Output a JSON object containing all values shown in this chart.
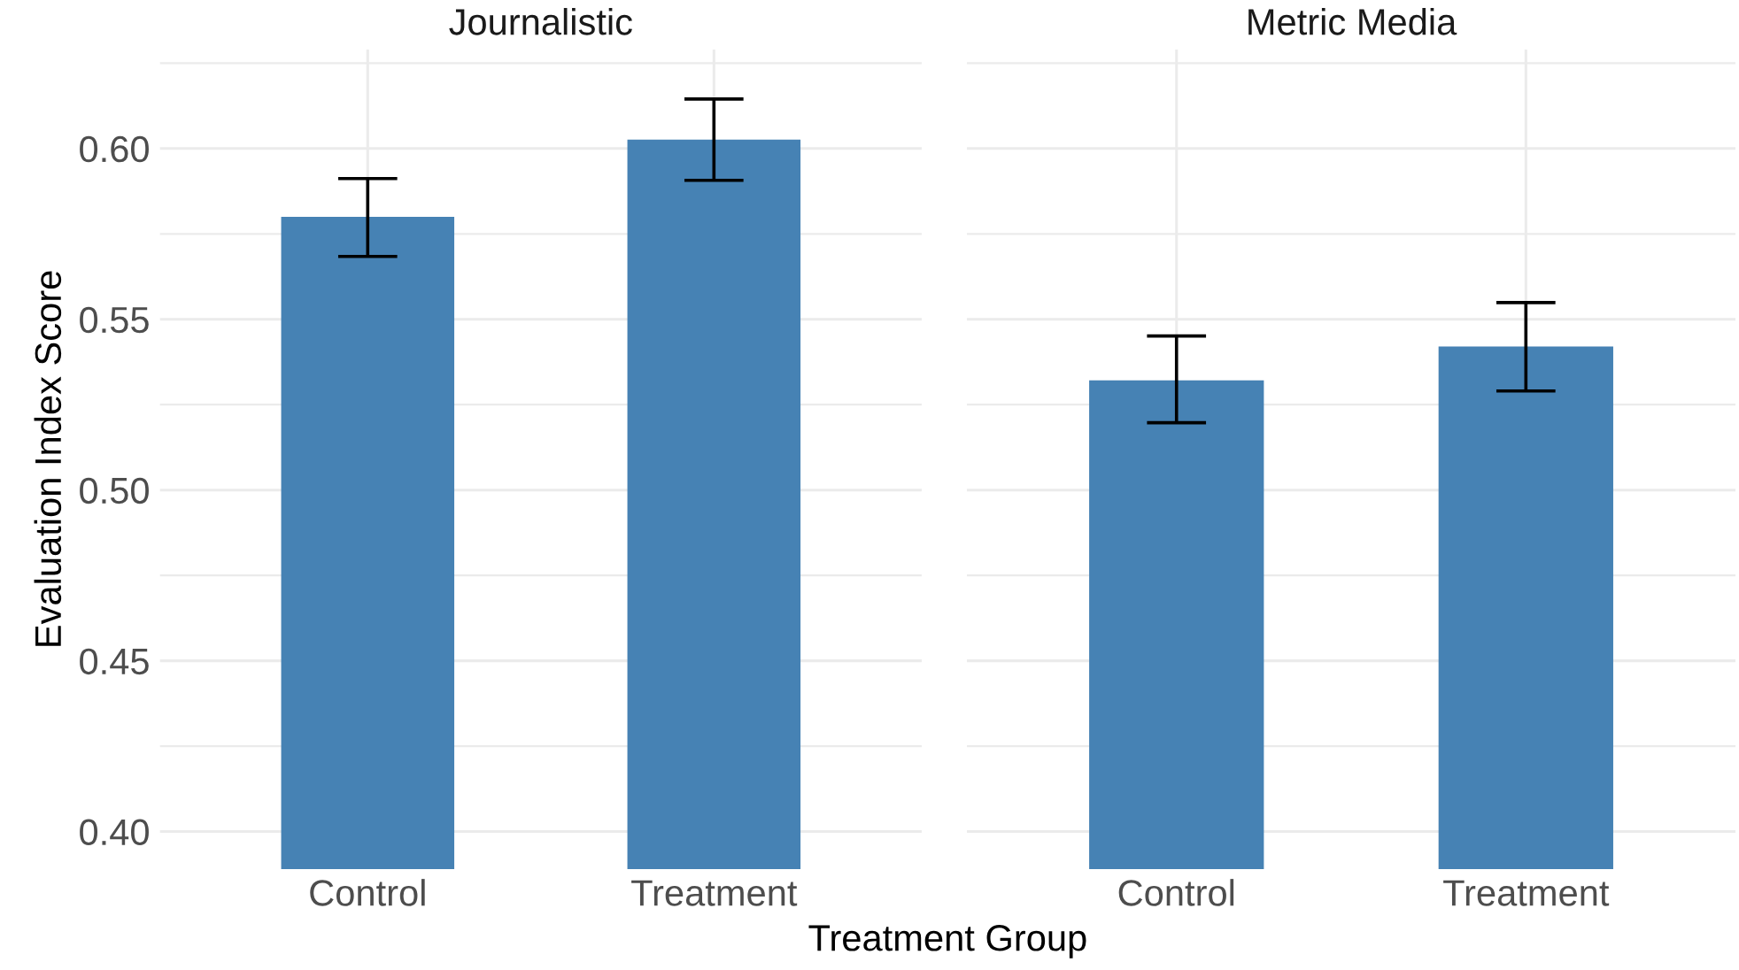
{
  "chart_data": [
    {
      "type": "bar",
      "title": "Journalistic",
      "xlabel": "Treatment Group",
      "ylabel": "Evaluation Index Score",
      "categories": [
        "Control",
        "Treatment"
      ],
      "values": [
        0.58,
        0.6026
      ],
      "errors": [
        [
          0.5684,
          0.5912
        ],
        [
          0.5907,
          0.6145
        ]
      ],
      "color": "#4682b4",
      "ylim": [
        0.389,
        0.629
      ],
      "yticks": [
        {
          "value": 0.4,
          "label": "0.40"
        },
        {
          "value": 0.425,
          "label": null
        },
        {
          "value": 0.45,
          "label": "0.45"
        },
        {
          "value": 0.475,
          "label": null
        },
        {
          "value": 0.5,
          "label": "0.50"
        },
        {
          "value": 0.525,
          "label": null
        },
        {
          "value": 0.55,
          "label": "0.55"
        },
        {
          "value": 0.575,
          "label": null
        },
        {
          "value": 0.6,
          "label": "0.60"
        },
        {
          "value": 0.625,
          "label": null
        }
      ],
      "grid": true
    },
    {
      "type": "bar",
      "title": "Metric Media",
      "categories": [
        "Control",
        "Treatment"
      ],
      "values": [
        0.5321,
        0.542
      ],
      "errors": [
        [
          0.5197,
          0.5451
        ],
        [
          0.529,
          0.5549
        ]
      ],
      "color": "#4682b4",
      "ylim": [
        0.389,
        0.629
      ],
      "yticks": [
        {
          "value": 0.4,
          "label": null
        },
        {
          "value": 0.425,
          "label": null
        },
        {
          "value": 0.45,
          "label": null
        },
        {
          "value": 0.475,
          "label": null
        },
        {
          "value": 0.5,
          "label": null
        },
        {
          "value": 0.525,
          "label": null
        },
        {
          "value": 0.55,
          "label": null
        },
        {
          "value": 0.575,
          "label": null
        },
        {
          "value": 0.6,
          "label": null
        },
        {
          "value": 0.625,
          "label": null
        }
      ],
      "grid": true,
      "tick_labels": "x"
    }
  ]
}
